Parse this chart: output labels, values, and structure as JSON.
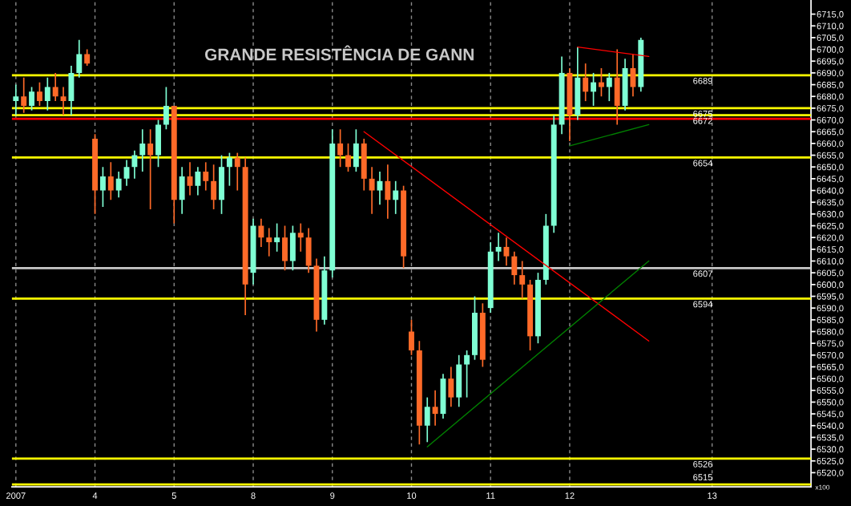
{
  "chart_data": {
    "type": "candlestick",
    "title": "GRANDE RESISTÊNCIA DE GANN",
    "categories": [
      "2007",
      null,
      null,
      null,
      null,
      null,
      null,
      null,
      null,
      null,
      "4",
      null,
      null,
      null,
      null,
      null,
      null,
      null,
      null,
      null,
      "5",
      null,
      null,
      null,
      null,
      null,
      null,
      null,
      null,
      null,
      "8",
      null,
      null,
      null,
      null,
      null,
      null,
      null,
      null,
      null,
      "9",
      null,
      null,
      null,
      null,
      null,
      null,
      null,
      null,
      null,
      "10",
      null,
      null,
      null,
      null,
      null,
      null,
      null,
      null,
      null,
      "11",
      null,
      null,
      null,
      null,
      null,
      null,
      null,
      null,
      null,
      "12",
      null,
      null,
      null,
      null,
      null,
      null,
      null,
      null,
      null,
      null,
      null,
      null,
      null,
      null,
      null,
      null,
      null,
      "13",
      null,
      null,
      null,
      null,
      null,
      null,
      null,
      null,
      null,
      null,
      null,
      null
    ],
    "ohlc": [
      [
        6678,
        6685,
        6672,
        6680
      ],
      [
        6680,
        6688,
        6673,
        6676
      ],
      [
        6676,
        6684,
        6674,
        6682
      ],
      [
        6682,
        6686,
        6676,
        6678
      ],
      [
        6678,
        6688,
        6674,
        6684
      ],
      [
        6684,
        6690,
        6678,
        6680
      ],
      [
        6680,
        6684,
        6672,
        6678
      ],
      [
        6678,
        6693,
        6672,
        6690
      ],
      [
        6690,
        6704,
        6688,
        6698
      ],
      [
        6698,
        6700,
        6693,
        6694
      ],
      [
        6662,
        6664,
        6630,
        6640
      ],
      [
        6640,
        6650,
        6633,
        6646
      ],
      [
        6646,
        6652,
        6636,
        6640
      ],
      [
        6640,
        6648,
        6637,
        6645
      ],
      [
        6645,
        6653,
        6642,
        6650
      ],
      [
        6650,
        6657,
        6645,
        6655
      ],
      [
        6655,
        6666,
        6648,
        6660
      ],
      [
        6660,
        6666,
        6632,
        6655
      ],
      [
        6655,
        6670,
        6650,
        6668
      ],
      [
        6668,
        6684,
        6666,
        6676
      ],
      [
        6676,
        6676,
        6626,
        6636
      ],
      [
        6636,
        6650,
        6630,
        6646
      ],
      [
        6646,
        6652,
        6638,
        6642
      ],
      [
        6642,
        6650,
        6638,
        6648
      ],
      [
        6648,
        6652,
        6640,
        6644
      ],
      [
        6644,
        6651,
        6632,
        6636
      ],
      [
        6636,
        6655,
        6630,
        6650
      ],
      [
        6650,
        6656,
        6642,
        6654
      ],
      [
        6654,
        6656,
        6640,
        6650
      ],
      [
        6650,
        6654,
        6587,
        6600
      ],
      [
        6605,
        6628,
        6600,
        6625
      ],
      [
        6625,
        6628,
        6616,
        6620
      ],
      [
        6620,
        6624,
        6612,
        6618
      ],
      [
        6618,
        6626,
        6614,
        6620
      ],
      [
        6620,
        6625,
        6606,
        6610
      ],
      [
        6610,
        6625,
        6606,
        6622
      ],
      [
        6622,
        6626,
        6614,
        6620
      ],
      [
        6620,
        6624,
        6605,
        6608
      ],
      [
        6608,
        6611,
        6580,
        6585
      ],
      [
        6585,
        6612,
        6583,
        6606
      ],
      [
        6606,
        6666,
        6603,
        6660
      ],
      [
        6660,
        6666,
        6650,
        6655
      ],
      [
        6655,
        6660,
        6648,
        6650
      ],
      [
        6650,
        6666,
        6648,
        6660
      ],
      [
        6660,
        6662,
        6640,
        6645
      ],
      [
        6645,
        6650,
        6630,
        6640
      ],
      [
        6640,
        6648,
        6634,
        6644
      ],
      [
        6644,
        6651,
        6628,
        6636
      ],
      [
        6636,
        6644,
        6630,
        6640
      ],
      [
        6640,
        6642,
        6607,
        6612
      ],
      [
        6580,
        6585,
        6570,
        6572
      ],
      [
        6572,
        6576,
        6532,
        6540
      ],
      [
        6540,
        6552,
        6533,
        6548
      ],
      [
        6548,
        6555,
        6540,
        6545
      ],
      [
        6545,
        6562,
        6543,
        6560
      ],
      [
        6560,
        6565,
        6548,
        6552
      ],
      [
        6552,
        6570,
        6548,
        6566
      ],
      [
        6566,
        6572,
        6552,
        6570
      ],
      [
        6570,
        6595,
        6568,
        6588
      ],
      [
        6588,
        6592,
        6565,
        6568
      ],
      [
        6590,
        6618,
        6588,
        6614
      ],
      [
        6614,
        6622,
        6610,
        6616
      ],
      [
        6616,
        6620,
        6608,
        6612
      ],
      [
        6612,
        6614,
        6600,
        6604
      ],
      [
        6604,
        6610,
        6594,
        6600
      ],
      [
        6600,
        6602,
        6572,
        6578
      ],
      [
        6578,
        6605,
        6575,
        6602
      ],
      [
        6602,
        6630,
        6600,
        6625
      ],
      [
        6625,
        6672,
        6622,
        6668
      ],
      [
        6668,
        6697,
        6664,
        6690
      ],
      [
        6690,
        6692,
        6661,
        6672
      ],
      [
        6672,
        6701,
        6670,
        6688
      ],
      [
        6688,
        6694,
        6678,
        6682
      ],
      [
        6682,
        6690,
        6676,
        6686
      ],
      [
        6686,
        6692,
        6680,
        6684
      ],
      [
        6684,
        6690,
        6678,
        6688
      ],
      [
        6688,
        6700,
        6668,
        6676
      ],
      [
        6676,
        6696,
        6674,
        6692
      ],
      [
        6692,
        6698,
        6680,
        6684
      ],
      [
        6684,
        6705,
        6682,
        6704
      ],
      null,
      null,
      null,
      null,
      null,
      null,
      null,
      null,
      null,
      null,
      null,
      null,
      null,
      null,
      null,
      null,
      null,
      null,
      null,
      null,
      null
    ],
    "colors": [
      "#7fffd4",
      "#ff6a28",
      "#7fffd4",
      "#ff6a28",
      "#7fffd4",
      "#ff6a28",
      "#ff6a28",
      "#7fffd4",
      "#7fffd4",
      "#ff6a28",
      "#ff6a28",
      "#7fffd4",
      "#ff6a28",
      "#7fffd4",
      "#7fffd4",
      "#7fffd4",
      "#7fffd4",
      "#ff6a28",
      "#7fffd4",
      "#7fffd4",
      "#ff6a28",
      "#7fffd4",
      "#ff6a28",
      "#7fffd4",
      "#ff6a28",
      "#ff6a28",
      "#7fffd4",
      "#7fffd4",
      "#ff6a28",
      "#ff6a28",
      "#7fffd4",
      "#ff6a28",
      "#ff6a28",
      "#7fffd4",
      "#ff6a28",
      "#7fffd4",
      "#ff6a28",
      "#ff6a28",
      "#ff6a28",
      "#7fffd4",
      "#7fffd4",
      "#ff6a28",
      "#ff6a28",
      "#7fffd4",
      "#ff6a28",
      "#ff6a28",
      "#7fffd4",
      "#ff6a28",
      "#7fffd4",
      "#ff6a28",
      "#ff6a28",
      "#ff6a28",
      "#7fffd4",
      "#ff6a28",
      "#7fffd4",
      "#ff6a28",
      "#7fffd4",
      "#7fffd4",
      "#7fffd4",
      "#ff6a28",
      "#7fffd4",
      "#7fffd4",
      "#ff6a28",
      "#ff6a28",
      "#ff6a28",
      "#ff6a28",
      "#7fffd4",
      "#7fffd4",
      "#7fffd4",
      "#7fffd4",
      "#ff6a28",
      "#7fffd4",
      "#ff6a28",
      "#7fffd4",
      "#ff6a28",
      "#7fffd4",
      "#ff6a28",
      "#7fffd4",
      "#ff6a28",
      "#7fffd4",
      null,
      null,
      null,
      null,
      null,
      null,
      null,
      null,
      null,
      null,
      null,
      null,
      null,
      null,
      null,
      null,
      null,
      null,
      null,
      null,
      null
    ],
    "series": [
      {
        "type": "line",
        "color": "#ff0000",
        "values": [
          null,
          null,
          null,
          null,
          null,
          null,
          null,
          null,
          null,
          null,
          null,
          null,
          null,
          null,
          null,
          null,
          null,
          null,
          null,
          null,
          null,
          null,
          null,
          null,
          null,
          null,
          null,
          null,
          null,
          null,
          null,
          null,
          null,
          null,
          null,
          null,
          null,
          null,
          null,
          null,
          null,
          null,
          null,
          null,
          6665,
          null,
          null,
          null,
          null,
          null,
          null,
          null,
          null,
          null,
          null,
          null,
          null,
          null,
          null,
          null,
          null,
          null,
          null,
          null,
          null,
          null,
          null,
          null,
          null,
          null,
          null,
          null,
          null,
          null,
          null,
          null,
          null,
          null,
          null,
          null,
          6576,
          null,
          null,
          null,
          null,
          null,
          null,
          null,
          null,
          null,
          null,
          null,
          null,
          null,
          null,
          null,
          null,
          null,
          null,
          null,
          null
        ]
      },
      {
        "type": "line",
        "color": "#008000",
        "values": [
          null,
          null,
          null,
          null,
          null,
          null,
          null,
          null,
          null,
          null,
          null,
          null,
          null,
          null,
          null,
          null,
          null,
          null,
          null,
          null,
          null,
          null,
          null,
          null,
          null,
          null,
          null,
          null,
          null,
          null,
          null,
          null,
          null,
          null,
          null,
          null,
          null,
          null,
          null,
          null,
          null,
          null,
          null,
          null,
          null,
          null,
          null,
          null,
          null,
          null,
          null,
          null,
          6531,
          null,
          null,
          null,
          null,
          null,
          null,
          null,
          null,
          null,
          null,
          null,
          null,
          null,
          null,
          null,
          null,
          null,
          null,
          null,
          null,
          null,
          null,
          null,
          null,
          null,
          null,
          null,
          6610,
          null,
          null,
          null,
          null,
          null,
          null,
          null,
          null,
          null,
          null,
          null,
          null,
          null,
          null,
          null,
          null,
          null,
          null,
          null,
          null
        ]
      },
      {
        "type": "line",
        "color": "#ff0000",
        "values": [
          null,
          null,
          null,
          null,
          null,
          null,
          null,
          null,
          null,
          null,
          null,
          null,
          null,
          null,
          null,
          null,
          null,
          null,
          null,
          null,
          null,
          null,
          null,
          null,
          null,
          null,
          null,
          null,
          null,
          null,
          null,
          null,
          null,
          null,
          null,
          null,
          null,
          null,
          null,
          null,
          null,
          null,
          null,
          null,
          null,
          null,
          null,
          null,
          null,
          null,
          null,
          null,
          null,
          null,
          null,
          null,
          null,
          null,
          null,
          null,
          null,
          null,
          null,
          null,
          null,
          null,
          null,
          null,
          null,
          null,
          null,
          6701,
          null,
          null,
          null,
          null,
          null,
          null,
          null,
          null,
          6697,
          null,
          null,
          null,
          null,
          null,
          null,
          null,
          null,
          null,
          null,
          null,
          null,
          null,
          null,
          null,
          null,
          null,
          null,
          null,
          null
        ]
      },
      {
        "type": "line",
        "color": "#008000",
        "values": [
          null,
          null,
          null,
          null,
          null,
          null,
          null,
          null,
          null,
          null,
          null,
          null,
          null,
          null,
          null,
          null,
          null,
          null,
          null,
          null,
          null,
          null,
          null,
          null,
          null,
          null,
          null,
          null,
          null,
          null,
          null,
          null,
          null,
          null,
          null,
          null,
          null,
          null,
          null,
          null,
          null,
          null,
          null,
          null,
          null,
          null,
          null,
          null,
          null,
          null,
          null,
          null,
          null,
          null,
          null,
          null,
          null,
          null,
          null,
          null,
          null,
          null,
          null,
          null,
          null,
          null,
          null,
          null,
          null,
          null,
          6659,
          null,
          null,
          null,
          null,
          null,
          null,
          null,
          null,
          null,
          6668,
          null,
          null,
          null,
          null,
          null,
          null,
          null,
          null,
          null,
          null,
          null,
          null,
          null,
          null,
          null,
          null,
          null,
          null,
          null,
          null
        ]
      }
    ],
    "ref_lines": [
      {
        "axis": "y",
        "value": 6689,
        "label": "6689",
        "color": "#ffff00"
      },
      {
        "axis": "y",
        "value": 6675,
        "label": "6675",
        "color": "#ffff00"
      },
      {
        "axis": "y",
        "value": 6672,
        "label": "6672",
        "color": "#ffff00"
      },
      {
        "axis": "y",
        "value": 6670.5,
        "color": "#ff0000"
      },
      {
        "axis": "y",
        "value": 6654,
        "label": "6654",
        "color": "#ffff00"
      },
      {
        "axis": "y",
        "value": 6607,
        "label": "6607",
        "color": "#c8c8c8"
      },
      {
        "axis": "y",
        "value": 6594,
        "label": "6594",
        "color": "#ffff00"
      },
      {
        "axis": "y",
        "value": 6526,
        "label": "6526",
        "color": "#ffff00"
      },
      {
        "axis": "y",
        "value": 6515,
        "label": "6515",
        "color": "#ffff00"
      }
    ],
    "annotations": [
      "x100"
    ],
    "ylim": [
      6514,
      6721
    ],
    "yticks": [
      {
        "value": 6520,
        "label": "6520,0"
      },
      {
        "value": 6525,
        "label": "6525,0"
      },
      {
        "value": 6530,
        "label": "6530,0"
      },
      {
        "value": 6535,
        "label": "6535,0"
      },
      {
        "value": 6540,
        "label": "6540,0"
      },
      {
        "value": 6545,
        "label": "6545,0"
      },
      {
        "value": 6550,
        "label": "6550,0"
      },
      {
        "value": 6555,
        "label": "6555,0"
      },
      {
        "value": 6560,
        "label": "6560,0"
      },
      {
        "value": 6565,
        "label": "6565,0"
      },
      {
        "value": 6570,
        "label": "6570,0"
      },
      {
        "value": 6575,
        "label": "6575,0"
      },
      {
        "value": 6580,
        "label": "6580,0"
      },
      {
        "value": 6585,
        "label": "6585,0"
      },
      {
        "value": 6590,
        "label": "6590,0"
      },
      {
        "value": 6595,
        "label": "6595,0"
      },
      {
        "value": 6600,
        "label": "6600,0"
      },
      {
        "value": 6605,
        "label": "6605,0"
      },
      {
        "value": 6610,
        "label": "6610,0"
      },
      {
        "value": 6615,
        "label": "6615,0"
      },
      {
        "value": 6620,
        "label": "6620,0"
      },
      {
        "value": 6625,
        "label": "6625,0"
      },
      {
        "value": 6630,
        "label": "6630,0"
      },
      {
        "value": 6635,
        "label": "6635,0"
      },
      {
        "value": 6640,
        "label": "6640,0"
      },
      {
        "value": 6645,
        "label": "6645,0"
      },
      {
        "value": 6650,
        "label": "6650,0"
      },
      {
        "value": 6655,
        "label": "6655,0"
      },
      {
        "value": 6660,
        "label": "6660,0"
      },
      {
        "value": 6665,
        "label": "6665,0"
      },
      {
        "value": 6670,
        "label": "6670,0"
      },
      {
        "value": 6675,
        "label": "6675,0"
      },
      {
        "value": 6680,
        "label": "6680,0"
      },
      {
        "value": 6685,
        "label": "6685,0"
      },
      {
        "value": 6690,
        "label": "6690,0"
      },
      {
        "value": 6695,
        "label": "6695,0"
      },
      {
        "value": 6700,
        "label": "6700,0"
      },
      {
        "value": 6705,
        "label": "6705,0"
      },
      {
        "value": 6710,
        "label": "6710,0"
      },
      {
        "value": 6715,
        "label": "6715,0"
      }
    ],
    "grid": "x"
  }
}
